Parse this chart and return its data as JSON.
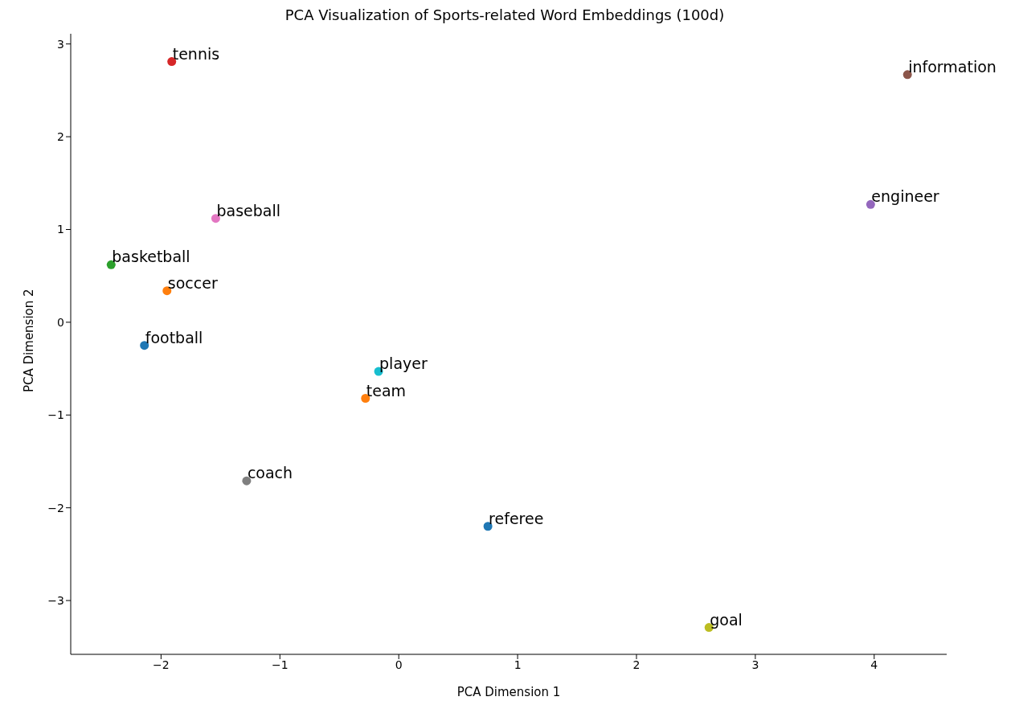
{
  "chart_data": {
    "type": "scatter",
    "title": "PCA Visualization of Sports-related Word Embeddings (100d)",
    "xlabel": "PCA Dimension 1",
    "ylabel": "PCA Dimension 2",
    "xlim": [
      -2.76,
      4.61
    ],
    "ylim": [
      -3.58,
      3.11
    ],
    "xticks": [
      {
        "value": -2,
        "label": "−2"
      },
      {
        "value": -1,
        "label": "−1"
      },
      0,
      1,
      2,
      3,
      4
    ],
    "yticks": [
      {
        "value": -3,
        "label": "−3"
      },
      {
        "value": -2,
        "label": "−2"
      },
      {
        "value": -1,
        "label": "−1"
      },
      0,
      1,
      2,
      3
    ],
    "marker": "circle",
    "grid": false,
    "legend": false,
    "series": [
      {
        "name": "football",
        "color": "#1f77b4",
        "x": [
          -2.14
        ],
        "values": [
          -0.25
        ]
      },
      {
        "name": "soccer",
        "color": "#ff7f0e",
        "x": [
          -1.95
        ],
        "values": [
          0.34
        ]
      },
      {
        "name": "basketball",
        "color": "#2ca02c",
        "x": [
          -2.42
        ],
        "values": [
          0.62
        ]
      },
      {
        "name": "tennis",
        "color": "#d62728",
        "x": [
          -1.91
        ],
        "values": [
          2.81
        ]
      },
      {
        "name": "engineer",
        "color": "#9467bd",
        "x": [
          3.97
        ],
        "values": [
          1.27
        ]
      },
      {
        "name": "information",
        "color": "#8c564b",
        "x": [
          4.28
        ],
        "values": [
          2.67
        ]
      },
      {
        "name": "baseball",
        "color": "#e377c2",
        "x": [
          -1.54
        ],
        "values": [
          1.12
        ]
      },
      {
        "name": "coach",
        "color": "#7f7f7f",
        "x": [
          -1.28
        ],
        "values": [
          -1.71
        ]
      },
      {
        "name": "goal",
        "color": "#bcbd22",
        "x": [
          2.61
        ],
        "values": [
          -3.29
        ]
      },
      {
        "name": "player",
        "color": "#17becf",
        "x": [
          -0.17
        ],
        "values": [
          -0.53
        ]
      },
      {
        "name": "referee",
        "color": "#1f77b4",
        "x": [
          0.75
        ],
        "values": [
          -2.2
        ]
      },
      {
        "name": "team",
        "color": "#ff7f0e",
        "x": [
          -0.28
        ],
        "values": [
          -0.82
        ]
      }
    ]
  }
}
